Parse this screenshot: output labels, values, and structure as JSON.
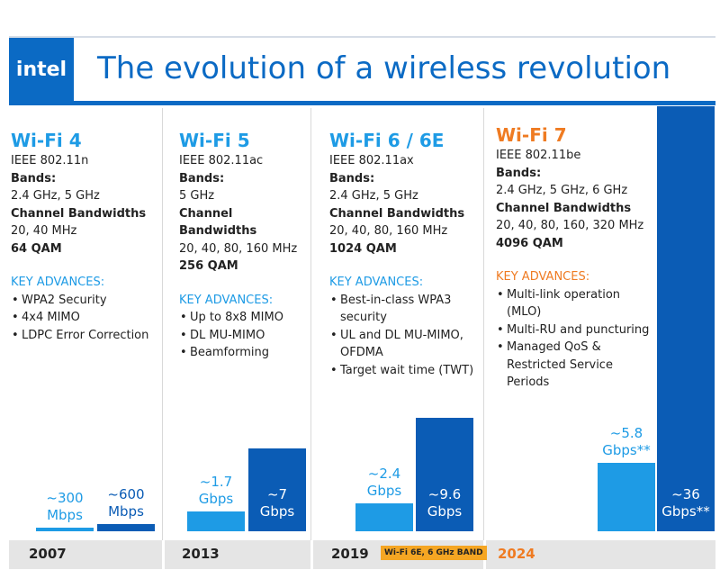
{
  "header": {
    "logo": "intel",
    "title": "The evolution of a wireless revolution"
  },
  "generations": [
    {
      "name": "Wi-Fi 4",
      "standard": "IEEE 802.11n",
      "bands_label": "Bands:",
      "bands": "2.4 GHz, 5 GHz",
      "bandwidths_label": "Channel Bandwidths",
      "bandwidths": "20, 40 MHz",
      "qam": "64 QAM",
      "advances_label": "KEY ADVANCES:",
      "advances": [
        "WPA2 Security",
        "4x4 MIMO",
        "LDPC Error Correction"
      ],
      "year": "2007",
      "speeds": [
        {
          "value": 0.3,
          "label": "~300\nMbps"
        },
        {
          "value": 0.6,
          "label": "~600\nMbps"
        }
      ]
    },
    {
      "name": "Wi-Fi 5",
      "standard": "IEEE 802.11ac",
      "bands_label": "Bands:",
      "bands": "5 GHz",
      "bandwidths_label": "Channel Bandwidths",
      "bandwidths": "20, 40, 80, 160 MHz",
      "qam": "256 QAM",
      "advances_label": "KEY ADVANCES:",
      "advances": [
        "Up to 8x8 MIMO",
        "DL MU-MIMO",
        "Beamforming"
      ],
      "year": "2013",
      "speeds": [
        {
          "value": 1.7,
          "label": "~1.7\nGbps"
        },
        {
          "value": 7,
          "label": "~7\nGbps"
        }
      ]
    },
    {
      "name": "Wi-Fi 6 / 6E",
      "standard": "IEEE 802.11ax",
      "bands_label": "Bands:",
      "bands": "2.4 GHz, 5 GHz",
      "bandwidths_label": "Channel Bandwidths",
      "bandwidths": "20, 40, 80, 160 MHz",
      "qam": "1024 QAM",
      "advances_label": "KEY ADVANCES:",
      "advances": [
        "Best-in-class WPA3 security",
        "UL and DL MU-MIMO, OFDMA",
        "Target wait time (TWT)"
      ],
      "year": "2019",
      "badge": "Wi-Fi 6E, 6 GHz BAND",
      "speeds": [
        {
          "value": 2.4,
          "label": "~2.4\nGbps"
        },
        {
          "value": 9.6,
          "label": "~9.6\nGbps"
        }
      ]
    },
    {
      "name": "Wi-Fi 7",
      "standard": "IEEE 802.11be",
      "bands_label": "Bands:",
      "bands": "2.4 GHz, 5 GHz, 6 GHz",
      "bandwidths_label": "Channel Bandwidths",
      "bandwidths": "20, 40, 80, 160, 320 MHz",
      "qam": "4096 QAM",
      "advances_label": "KEY ADVANCES:",
      "advances": [
        "Multi-link operation (MLO)",
        "Multi-RU and puncturing",
        "Managed QoS & Restricted Service Periods"
      ],
      "year": "2024",
      "speeds": [
        {
          "value": 5.8,
          "label": "~5.8\nGbps**"
        },
        {
          "value": 36,
          "label": "~36\nGbps**"
        }
      ]
    }
  ]
}
